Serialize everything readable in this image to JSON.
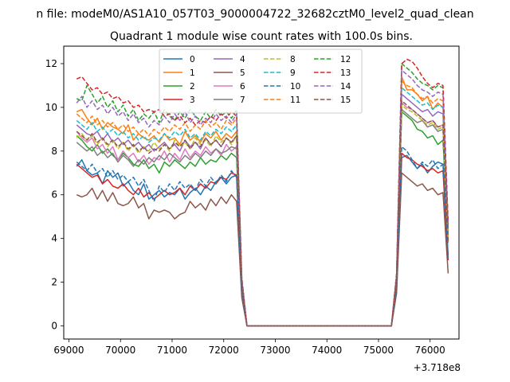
{
  "chart_data": {
    "type": "line",
    "suptitle": "n file: modeM0/AS1A10_057T03_9000004722_32682cztM0_level2_quad_clean",
    "title": "Quadrant 1 module wise count rates with 100.0s bins.",
    "xlabel": "",
    "ylabel": "",
    "x_offset_label": "+3.718e8",
    "xlim": [
      68900,
      76560
    ],
    "ylim": [
      -0.6,
      12.8
    ],
    "x_ticks": [
      69000,
      70000,
      71000,
      72000,
      73000,
      74000,
      75000,
      76000
    ],
    "y_ticks": [
      0,
      2,
      4,
      6,
      8,
      10,
      12
    ],
    "grid": false,
    "legend": {
      "placement": "top-center",
      "ncol": 4
    },
    "x_start": 69150,
    "x_step": 100,
    "series": [
      {
        "name": "0",
        "color": "#1f77b4",
        "style": "solid",
        "values": [
          7.3,
          7.6,
          7.1,
          6.9,
          7.0,
          6.5,
          7.1,
          6.8,
          7.0,
          6.4,
          6.6,
          6.2,
          6.0,
          6.5,
          5.8,
          6.0,
          6.2,
          5.9,
          6.1,
          6.0,
          6.3,
          5.8,
          6.1,
          6.3,
          6.0,
          6.4,
          6.2,
          6.6,
          6.8,
          6.5,
          6.8,
          6.9,
          1.5,
          0,
          0,
          0,
          0,
          0,
          0,
          0,
          0,
          0,
          0,
          0,
          0,
          0,
          0,
          0,
          0,
          0,
          0,
          0,
          0,
          0,
          0,
          0,
          0,
          0,
          0,
          0,
          0,
          0,
          1.7,
          7.7,
          7.8,
          7.5,
          7.2,
          7.4,
          7.0,
          7.3,
          7.5,
          7.4,
          3.2
        ]
      },
      {
        "name": "1",
        "color": "#ff7f0e",
        "style": "solid",
        "values": [
          9.8,
          9.9,
          9.5,
          9.2,
          9.5,
          9.0,
          9.3,
          9.1,
          9.0,
          8.8,
          9.2,
          8.5,
          8.8,
          8.6,
          8.5,
          8.7,
          8.4,
          8.8,
          8.5,
          8.6,
          8.3,
          8.9,
          8.5,
          8.7,
          8.4,
          8.8,
          8.6,
          8.9,
          8.5,
          8.8,
          8.6,
          8.9,
          2.0,
          0,
          0,
          0,
          0,
          0,
          0,
          0,
          0,
          0,
          0,
          0,
          0,
          0,
          0,
          0,
          0,
          0,
          0,
          0,
          0,
          0,
          0,
          0,
          0,
          0,
          0,
          0,
          0,
          0,
          2.3,
          11.4,
          10.8,
          10.8,
          10.6,
          10.3,
          10.5,
          9.9,
          10.2,
          10.0,
          4.3
        ]
      },
      {
        "name": "2",
        "color": "#2ca02c",
        "style": "solid",
        "values": [
          8.7,
          8.5,
          8.2,
          8.0,
          8.3,
          7.9,
          8.1,
          7.8,
          7.6,
          7.9,
          7.7,
          7.4,
          7.3,
          7.6,
          7.2,
          7.4,
          7.0,
          7.5,
          7.3,
          7.6,
          7.4,
          7.2,
          7.5,
          7.3,
          7.7,
          7.4,
          7.6,
          7.5,
          7.8,
          7.6,
          7.9,
          7.7,
          1.8,
          0,
          0,
          0,
          0,
          0,
          0,
          0,
          0,
          0,
          0,
          0,
          0,
          0,
          0,
          0,
          0,
          0,
          0,
          0,
          0,
          0,
          0,
          0,
          0,
          0,
          0,
          0,
          0,
          0,
          2.0,
          9.8,
          9.6,
          9.4,
          9.0,
          8.9,
          8.6,
          8.7,
          8.3,
          8.5,
          3.9
        ]
      },
      {
        "name": "3",
        "color": "#d62728",
        "style": "solid",
        "values": [
          7.4,
          7.2,
          7.0,
          6.8,
          6.9,
          6.5,
          6.7,
          6.4,
          6.3,
          6.5,
          6.2,
          6.0,
          6.3,
          5.9,
          6.1,
          5.8,
          6.0,
          6.2,
          6.0,
          6.1,
          6.3,
          6.0,
          6.4,
          6.2,
          6.5,
          6.3,
          6.6,
          6.5,
          6.8,
          6.7,
          7.0,
          6.9,
          1.6,
          0,
          0,
          0,
          0,
          0,
          0,
          0,
          0,
          0,
          0,
          0,
          0,
          0,
          0,
          0,
          0,
          0,
          0,
          0,
          0,
          0,
          0,
          0,
          0,
          0,
          0,
          0,
          0,
          0,
          1.8,
          7.9,
          7.7,
          7.6,
          7.4,
          7.3,
          7.1,
          7.2,
          7.0,
          7.1,
          3.0
        ]
      },
      {
        "name": "4",
        "color": "#9467bd",
        "style": "solid",
        "values": [
          9.2,
          9.0,
          8.8,
          8.7,
          8.9,
          8.5,
          8.8,
          8.4,
          8.6,
          8.3,
          8.5,
          8.2,
          8.4,
          8.1,
          8.3,
          8.0,
          8.2,
          8.4,
          8.1,
          8.3,
          8.0,
          8.5,
          8.2,
          8.4,
          8.1,
          8.6,
          8.3,
          8.5,
          8.2,
          8.6,
          8.4,
          8.7,
          1.9,
          0,
          0,
          0,
          0,
          0,
          0,
          0,
          0,
          0,
          0,
          0,
          0,
          0,
          0,
          0,
          0,
          0,
          0,
          0,
          0,
          0,
          0,
          0,
          0,
          0,
          0,
          0,
          0,
          0,
          2.1,
          10.6,
          10.4,
          10.2,
          10.0,
          9.8,
          9.9,
          9.6,
          9.8,
          9.7,
          4.1
        ]
      },
      {
        "name": "5",
        "color": "#8c564b",
        "style": "solid",
        "values": [
          6.0,
          5.9,
          6.0,
          6.3,
          5.8,
          6.2,
          5.7,
          6.1,
          5.6,
          5.5,
          5.6,
          5.9,
          5.4,
          5.6,
          4.9,
          5.3,
          5.2,
          5.3,
          5.2,
          4.9,
          5.1,
          5.2,
          5.7,
          5.4,
          5.6,
          5.3,
          5.8,
          5.5,
          5.9,
          5.6,
          6.0,
          5.7,
          1.3,
          0,
          0,
          0,
          0,
          0,
          0,
          0,
          0,
          0,
          0,
          0,
          0,
          0,
          0,
          0,
          0,
          0,
          0,
          0,
          0,
          0,
          0,
          0,
          0,
          0,
          0,
          0,
          0,
          0,
          1.5,
          7.0,
          6.8,
          6.6,
          6.4,
          6.5,
          6.2,
          6.3,
          6.0,
          6.1,
          2.4
        ]
      },
      {
        "name": "6",
        "color": "#e377c2",
        "style": "solid",
        "values": [
          8.9,
          8.6,
          8.4,
          8.6,
          8.1,
          8.3,
          7.9,
          8.2,
          7.6,
          8.0,
          7.7,
          7.9,
          7.5,
          7.8,
          7.4,
          7.7,
          7.6,
          8.0,
          7.5,
          7.9,
          7.6,
          8.1,
          7.7,
          8.0,
          7.8,
          8.2,
          7.9,
          8.1,
          7.8,
          8.3,
          8.0,
          8.2,
          1.9,
          0,
          0,
          0,
          0,
          0,
          0,
          0,
          0,
          0,
          0,
          0,
          0,
          0,
          0,
          0,
          0,
          0,
          0,
          0,
          0,
          0,
          0,
          0,
          0,
          0,
          0,
          0,
          0,
          0,
          2.1,
          10.2,
          10.0,
          9.9,
          9.7,
          9.5,
          9.3,
          9.4,
          9.1,
          9.2,
          4.0
        ]
      },
      {
        "name": "7",
        "color": "#7f7f7f",
        "style": "solid",
        "values": [
          8.4,
          8.2,
          8.0,
          8.2,
          7.8,
          8.0,
          7.7,
          7.9,
          7.5,
          7.8,
          7.6,
          7.3,
          7.6,
          7.4,
          7.7,
          7.5,
          7.8,
          7.6,
          7.9,
          7.7,
          7.5,
          7.8,
          7.6,
          7.9,
          7.7,
          8.0,
          7.8,
          8.1,
          7.9,
          8.0,
          8.2,
          8.1,
          1.8,
          0,
          0,
          0,
          0,
          0,
          0,
          0,
          0,
          0,
          0,
          0,
          0,
          0,
          0,
          0,
          0,
          0,
          0,
          0,
          0,
          0,
          0,
          0,
          0,
          0,
          0,
          0,
          0,
          0,
          2.0,
          9.9,
          9.7,
          9.5,
          9.3,
          9.4,
          9.1,
          9.2,
          8.9,
          9.0,
          3.8
        ]
      },
      {
        "name": "8",
        "color": "#bcbd22",
        "style": "dashed",
        "values": [
          8.6,
          8.8,
          8.5,
          8.7,
          8.3,
          8.6,
          8.2,
          8.5,
          8.1,
          8.4,
          8.0,
          8.3,
          7.9,
          8.2,
          8.0,
          8.4,
          8.1,
          8.3,
          8.0,
          8.5,
          8.2,
          8.4,
          8.1,
          8.6,
          8.3,
          8.5,
          8.2,
          8.7,
          8.4,
          8.6,
          8.3,
          8.7,
          1.9,
          0,
          0,
          0,
          0,
          0,
          0,
          0,
          0,
          0,
          0,
          0,
          0,
          0,
          0,
          0,
          0,
          0,
          0,
          0,
          0,
          0,
          0,
          0,
          0,
          0,
          0,
          0,
          0,
          0,
          2.1,
          10.1,
          9.9,
          9.8,
          9.6,
          9.4,
          9.2,
          9.3,
          9.0,
          9.1,
          3.9
        ]
      },
      {
        "name": "9",
        "color": "#17becf",
        "style": "dashed",
        "values": [
          9.4,
          9.2,
          9.0,
          9.3,
          8.9,
          9.1,
          8.8,
          9.0,
          8.7,
          8.9,
          8.6,
          8.8,
          8.5,
          8.7,
          8.4,
          8.6,
          8.5,
          8.8,
          8.6,
          8.9,
          8.7,
          9.0,
          8.6,
          8.8,
          8.5,
          8.9,
          8.7,
          9.0,
          8.8,
          9.1,
          8.9,
          9.2,
          2.0,
          0,
          0,
          0,
          0,
          0,
          0,
          0,
          0,
          0,
          0,
          0,
          0,
          0,
          0,
          0,
          0,
          0,
          0,
          0,
          0,
          0,
          0,
          0,
          0,
          0,
          0,
          0,
          0,
          0,
          2.2,
          10.9,
          10.7,
          10.5,
          10.3,
          10.1,
          10.2,
          9.9,
          10.1,
          10.0,
          4.2
        ]
      },
      {
        "name": "10",
        "color": "#1f77b4",
        "style": "dashed",
        "values": [
          7.5,
          7.3,
          7.1,
          7.4,
          7.0,
          7.2,
          6.8,
          7.1,
          6.7,
          6.9,
          6.6,
          6.8,
          6.4,
          6.7,
          6.2,
          5.7,
          6.4,
          6.1,
          6.5,
          6.2,
          6.6,
          6.3,
          6.5,
          6.2,
          6.7,
          6.4,
          6.8,
          6.5,
          6.9,
          6.6,
          7.1,
          6.8,
          1.6,
          0,
          0,
          0,
          0,
          0,
          0,
          0,
          0,
          0,
          0,
          0,
          0,
          0,
          0,
          0,
          0,
          0,
          0,
          0,
          0,
          0,
          0,
          0,
          0,
          0,
          0,
          0,
          0,
          0,
          1.8,
          8.2,
          8.0,
          7.6,
          7.2,
          7.5,
          7.3,
          7.6,
          7.2,
          7.4,
          3.1
        ]
      },
      {
        "name": "11",
        "color": "#ff7f0e",
        "style": "dashed",
        "values": [
          9.7,
          9.5,
          9.3,
          9.6,
          9.2,
          9.4,
          9.1,
          9.3,
          9.0,
          9.2,
          8.9,
          9.1,
          8.8,
          9.0,
          8.7,
          9.0,
          8.8,
          9.1,
          8.9,
          9.2,
          9.0,
          9.3,
          8.9,
          9.2,
          9.0,
          9.4,
          9.1,
          9.3,
          9.0,
          9.4,
          9.2,
          9.5,
          2.1,
          0,
          0,
          0,
          0,
          0,
          0,
          0,
          0,
          0,
          0,
          0,
          0,
          0,
          0,
          0,
          0,
          0,
          0,
          0,
          0,
          0,
          0,
          0,
          0,
          0,
          0,
          0,
          0,
          0,
          2.3,
          11.2,
          11.0,
          10.9,
          10.6,
          10.4,
          10.5,
          10.2,
          10.4,
          10.3,
          4.4
        ]
      },
      {
        "name": "12",
        "color": "#2ca02c",
        "style": "dashed",
        "values": [
          10.4,
          10.3,
          11.0,
          10.6,
          10.2,
          10.5,
          10.0,
          10.3,
          9.8,
          10.1,
          9.6,
          9.9,
          9.4,
          9.7,
          9.5,
          9.8,
          9.3,
          9.9,
          9.6,
          9.4,
          9.8,
          9.5,
          9.9,
          9.6,
          9.4,
          9.8,
          9.5,
          9.9,
          9.6,
          9.8,
          9.5,
          9.9,
          2.2,
          0,
          0,
          0,
          0,
          0,
          0,
          0,
          0,
          0,
          0,
          0,
          0,
          0,
          0,
          0,
          0,
          0,
          0,
          0,
          0,
          0,
          0,
          0,
          0,
          0,
          0,
          0,
          0,
          0,
          2.4,
          12.0,
          11.8,
          11.6,
          11.3,
          11.1,
          11.0,
          10.8,
          11.0,
          10.9,
          4.6
        ]
      },
      {
        "name": "13",
        "color": "#d62728",
        "style": "dashed",
        "values": [
          11.3,
          11.4,
          11.1,
          10.8,
          10.9,
          10.6,
          10.7,
          10.4,
          10.5,
          10.2,
          10.3,
          10.0,
          10.1,
          9.8,
          9.9,
          9.8,
          9.9,
          9.6,
          9.7,
          9.4,
          9.6,
          9.3,
          9.5,
          9.2,
          9.4,
          9.3,
          9.6,
          9.4,
          9.7,
          9.5,
          9.8,
          9.6,
          2.2,
          0,
          0,
          0,
          0,
          0,
          0,
          0,
          0,
          0,
          0,
          0,
          0,
          0,
          0,
          0,
          0,
          0,
          0,
          0,
          0,
          0,
          0,
          0,
          0,
          0,
          0,
          0,
          0,
          0,
          2.4,
          12.0,
          12.2,
          12.1,
          11.8,
          11.4,
          11.1,
          10.9,
          11.1,
          11.0,
          4.7
        ]
      },
      {
        "name": "14",
        "color": "#9467bd",
        "style": "dashed",
        "values": [
          10.2,
          10.5,
          10.0,
          10.3,
          9.9,
          10.1,
          9.7,
          10.0,
          9.6,
          9.8,
          9.4,
          9.7,
          9.3,
          9.5,
          9.1,
          9.4,
          9.2,
          9.6,
          9.3,
          9.7,
          9.4,
          9.8,
          9.3,
          9.6,
          9.2,
          9.5,
          9.3,
          9.7,
          9.4,
          9.6,
          9.3,
          9.7,
          2.1,
          0,
          0,
          0,
          0,
          0,
          0,
          0,
          0,
          0,
          0,
          0,
          0,
          0,
          0,
          0,
          0,
          0,
          0,
          0,
          0,
          0,
          0,
          0,
          0,
          0,
          0,
          0,
          0,
          0,
          2.3,
          11.7,
          11.5,
          11.3,
          11.0,
          10.8,
          10.7,
          10.5,
          10.7,
          10.6,
          4.5
        ]
      },
      {
        "name": "15",
        "color": "#8c564b",
        "style": "dashed",
        "values": [
          8.9,
          8.7,
          8.5,
          8.8,
          8.4,
          8.6,
          8.3,
          8.5,
          8.2,
          8.4,
          8.1,
          8.3,
          8.0,
          8.2,
          7.9,
          8.1,
          8.0,
          8.3,
          8.1,
          8.4,
          8.2,
          8.5,
          8.1,
          8.4,
          8.2,
          8.6,
          8.3,
          8.5,
          8.2,
          8.6,
          8.4,
          8.7,
          1.9,
          0,
          0,
          0,
          0,
          0,
          0,
          0,
          0,
          0,
          0,
          0,
          0,
          0,
          0,
          0,
          0,
          0,
          0,
          0,
          0,
          0,
          0,
          0,
          0,
          0,
          0,
          0,
          0,
          0,
          2.1,
          10.3,
          10.1,
          9.9,
          9.7,
          9.5,
          9.3,
          9.4,
          9.1,
          9.2,
          3.9
        ]
      }
    ]
  }
}
